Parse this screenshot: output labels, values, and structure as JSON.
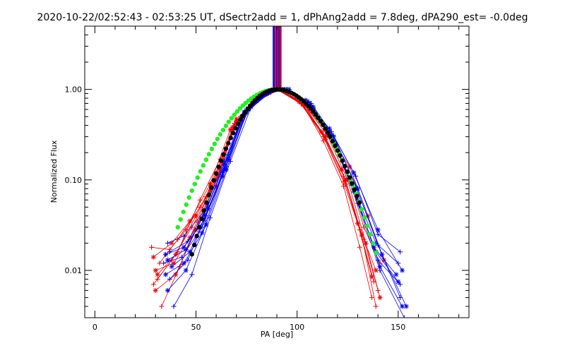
{
  "chart_data": {
    "type": "line",
    "title": "2020-10-22/02:52:43 - 02:53:25 UT, dSectr2add = 1, dPhAng2add = 7.8deg, dPA290_est= -0.0deg",
    "xlabel": "PA [deg]",
    "ylabel": "Normalized Flux",
    "xlim": [
      -5,
      185
    ],
    "ylim": [
      0.003,
      5
    ],
    "y_scale": "log",
    "grid": false,
    "x_ticks": [
      {
        "value": 0,
        "label": "0"
      },
      {
        "value": 50,
        "label": "50"
      },
      {
        "value": 100,
        "label": "100"
      },
      {
        "value": 150,
        "label": "150"
      }
    ],
    "x_minor_step": 10,
    "y_ticks": [
      {
        "value": 0.01,
        "label": "0.01"
      },
      {
        "value": 0.1,
        "label": "0.10"
      },
      {
        "value": 1,
        "label": "1.00"
      }
    ],
    "colors": {
      "red": "#ee0000",
      "blue": "#0000ee",
      "green": "#22ee22",
      "black": "#000000"
    },
    "vertical_markers": [
      {
        "color": "blue",
        "x": [
          88.2,
          88.7,
          89.3,
          89.9,
          90.8,
          91.6
        ],
        "y_range": [
          0.95,
          5
        ]
      },
      {
        "color": "red",
        "x": [
          89.0,
          90.3,
          91.2,
          92.1
        ],
        "y_range": [
          0.95,
          5
        ]
      }
    ],
    "model_curves": [
      {
        "color": "green",
        "marker": "dots",
        "center": 90,
        "sigma_left": 18.5,
        "sigma_right": 17.0,
        "x_range": [
          41,
          140
        ],
        "step": 1.4
      },
      {
        "color": "black",
        "marker": "dots",
        "center": 90,
        "sigma_left": 14.5,
        "sigma_right": 17.0,
        "x_range": [
          48,
          132
        ],
        "step": 1.2
      }
    ],
    "series": [
      {
        "color": "red",
        "marker": "plus",
        "points": [
          [
            28,
            0.018
          ],
          [
            37,
            0.017
          ],
          [
            45,
            0.028
          ],
          [
            55,
            0.065
          ],
          [
            68,
            0.34
          ],
          [
            79,
            0.72
          ],
          [
            91,
            1.0
          ],
          [
            103,
            0.72
          ],
          [
            115,
            0.33
          ],
          [
            125,
            0.12
          ],
          [
            133,
            0.03
          ],
          [
            141,
            0.012
          ]
        ]
      },
      {
        "color": "red",
        "marker": "star",
        "points": [
          [
            30,
            0.01
          ],
          [
            39,
            0.012
          ],
          [
            47,
            0.023
          ],
          [
            57,
            0.075
          ],
          [
            68,
            0.38
          ],
          [
            79,
            0.75
          ],
          [
            91,
            1.0
          ],
          [
            103,
            0.68
          ],
          [
            114,
            0.3
          ],
          [
            124,
            0.1
          ],
          [
            132,
            0.025
          ],
          [
            139,
            0.01
          ]
        ]
      },
      {
        "color": "red",
        "marker": "plus",
        "points": [
          [
            29,
            0.007
          ],
          [
            38,
            0.013
          ],
          [
            48,
            0.03
          ],
          [
            58,
            0.08
          ],
          [
            69,
            0.42
          ],
          [
            80,
            0.78
          ],
          [
            90,
            1.0
          ],
          [
            102,
            0.7
          ],
          [
            113,
            0.32
          ],
          [
            123,
            0.11
          ],
          [
            131,
            0.028
          ],
          [
            138,
            0.0075
          ]
        ]
      },
      {
        "color": "red",
        "marker": "star",
        "points": [
          [
            31,
            0.009
          ],
          [
            40,
            0.015
          ],
          [
            50,
            0.04
          ],
          [
            60,
            0.1
          ],
          [
            70,
            0.47
          ],
          [
            81,
            0.8
          ],
          [
            90,
            1.0
          ],
          [
            101,
            0.73
          ],
          [
            112,
            0.34
          ],
          [
            122,
            0.13
          ],
          [
            130,
            0.033
          ],
          [
            137,
            0.0085
          ]
        ]
      },
      {
        "color": "red",
        "marker": "plus",
        "points": [
          [
            32,
            0.012
          ],
          [
            41,
            0.022
          ],
          [
            52,
            0.05
          ],
          [
            62,
            0.13
          ],
          [
            70,
            0.44
          ],
          [
            81,
            0.78
          ],
          [
            92,
            1.0
          ],
          [
            104,
            0.66
          ],
          [
            114,
            0.28
          ],
          [
            124,
            0.09
          ],
          [
            133,
            0.022
          ],
          [
            140,
            0.006
          ]
        ]
      },
      {
        "color": "red",
        "marker": "star",
        "points": [
          [
            30,
            0.006
          ],
          [
            40,
            0.009
          ],
          [
            50,
            0.028
          ],
          [
            60,
            0.085
          ],
          [
            69,
            0.4
          ],
          [
            80,
            0.74
          ],
          [
            91,
            1.0
          ],
          [
            103,
            0.71
          ],
          [
            115,
            0.31
          ],
          [
            125,
            0.1
          ],
          [
            134,
            0.02
          ],
          [
            141,
            0.005
          ]
        ]
      },
      {
        "color": "red",
        "marker": "plus",
        "points": [
          [
            33,
            0.004
          ],
          [
            42,
            0.011
          ],
          [
            51,
            0.034
          ],
          [
            61,
            0.11
          ],
          [
            70,
            0.45
          ],
          [
            80,
            0.77
          ],
          [
            90,
            1.0
          ],
          [
            102,
            0.69
          ],
          [
            113,
            0.3
          ],
          [
            123,
            0.095
          ],
          [
            132,
            0.024
          ],
          [
            139,
            0.004
          ]
        ]
      },
      {
        "color": "red",
        "marker": "star",
        "points": [
          [
            29,
            0.014
          ],
          [
            38,
            0.02
          ],
          [
            47,
            0.035
          ],
          [
            57,
            0.09
          ],
          [
            67,
            0.36
          ],
          [
            78,
            0.7
          ],
          [
            90,
            1.0
          ],
          [
            102,
            0.74
          ],
          [
            114,
            0.36
          ],
          [
            126,
            0.14
          ],
          [
            135,
            0.04
          ],
          [
            143,
            0.013
          ]
        ]
      },
      {
        "color": "red",
        "marker": "plus",
        "points": [
          [
            31,
            0.008
          ],
          [
            41,
            0.016
          ],
          [
            52,
            0.06
          ],
          [
            62,
            0.17
          ],
          [
            72,
            0.5
          ],
          [
            82,
            0.82
          ],
          [
            92,
            1.0
          ],
          [
            103,
            0.67
          ],
          [
            113,
            0.27
          ],
          [
            123,
            0.085
          ],
          [
            131,
            0.018
          ],
          [
            137,
            0.005
          ]
        ]
      },
      {
        "color": "blue",
        "marker": "plus",
        "points": [
          [
            36,
            0.02
          ],
          [
            44,
            0.024
          ],
          [
            54,
            0.045
          ],
          [
            64,
            0.16
          ],
          [
            74,
            0.58
          ],
          [
            84,
            0.9
          ],
          [
            94,
            1.0
          ],
          [
            106,
            0.7
          ],
          [
            117,
            0.3
          ],
          [
            128,
            0.08
          ],
          [
            139,
            0.02
          ],
          [
            150,
            0.012
          ]
        ]
      },
      {
        "color": "blue",
        "marker": "star",
        "points": [
          [
            35,
            0.015
          ],
          [
            44,
            0.018
          ],
          [
            54,
            0.036
          ],
          [
            64,
            0.13
          ],
          [
            74,
            0.54
          ],
          [
            84,
            0.88
          ],
          [
            93,
            1.0
          ],
          [
            105,
            0.74
          ],
          [
            116,
            0.32
          ],
          [
            127,
            0.09
          ],
          [
            138,
            0.018
          ],
          [
            149,
            0.009
          ]
        ]
      },
      {
        "color": "blue",
        "marker": "plus",
        "points": [
          [
            37,
            0.008
          ],
          [
            46,
            0.013
          ],
          [
            55,
            0.04
          ],
          [
            65,
            0.14
          ],
          [
            75,
            0.57
          ],
          [
            85,
            0.9
          ],
          [
            95,
            1.0
          ],
          [
            107,
            0.66
          ],
          [
            118,
            0.27
          ],
          [
            129,
            0.07
          ],
          [
            140,
            0.013
          ],
          [
            151,
            0.007
          ]
        ]
      },
      {
        "color": "blue",
        "marker": "star",
        "points": [
          [
            38,
            0.011
          ],
          [
            47,
            0.016
          ],
          [
            56,
            0.048
          ],
          [
            66,
            0.17
          ],
          [
            76,
            0.6
          ],
          [
            86,
            0.92
          ],
          [
            96,
            1.0
          ],
          [
            108,
            0.64
          ],
          [
            119,
            0.25
          ],
          [
            130,
            0.06
          ],
          [
            141,
            0.011
          ],
          [
            152,
            0.004
          ]
        ]
      },
      {
        "color": "blue",
        "marker": "plus",
        "points": [
          [
            34,
            0.012
          ],
          [
            43,
            0.014
          ],
          [
            53,
            0.03
          ],
          [
            63,
            0.12
          ],
          [
            73,
            0.52
          ],
          [
            83,
            0.86
          ],
          [
            93,
            1.0
          ],
          [
            105,
            0.72
          ],
          [
            117,
            0.34
          ],
          [
            129,
            0.11
          ],
          [
            140,
            0.025
          ],
          [
            151,
            0.016
          ]
        ]
      },
      {
        "color": "blue",
        "marker": "star",
        "points": [
          [
            36,
            0.006
          ],
          [
            45,
            0.01
          ],
          [
            55,
            0.032
          ],
          [
            65,
            0.13
          ],
          [
            75,
            0.55
          ],
          [
            85,
            0.89
          ],
          [
            94,
            1.0
          ],
          [
            106,
            0.68
          ],
          [
            117,
            0.29
          ],
          [
            128,
            0.075
          ],
          [
            139,
            0.016
          ],
          [
            150,
            0.0075
          ]
        ]
      },
      {
        "color": "blue",
        "marker": "plus",
        "points": [
          [
            39,
            0.004
          ],
          [
            48,
            0.009
          ],
          [
            57,
            0.038
          ],
          [
            67,
            0.16
          ],
          [
            77,
            0.62
          ],
          [
            87,
            0.93
          ],
          [
            95,
            1.0
          ],
          [
            107,
            0.7
          ],
          [
            118,
            0.31
          ],
          [
            129,
            0.085
          ],
          [
            140,
            0.019
          ],
          [
            151,
            0.005
          ]
        ]
      },
      {
        "color": "blue",
        "marker": "star",
        "points": [
          [
            35,
            0.009
          ],
          [
            44,
            0.012
          ],
          [
            53,
            0.026
          ],
          [
            63,
            0.11
          ],
          [
            73,
            0.5
          ],
          [
            83,
            0.85
          ],
          [
            92,
            1.0
          ],
          [
            104,
            0.76
          ],
          [
            116,
            0.37
          ],
          [
            128,
            0.12
          ],
          [
            140,
            0.028
          ],
          [
            152,
            0.01
          ]
        ]
      },
      {
        "color": "blue",
        "marker": "plus",
        "points": [
          [
            37,
            0.016
          ],
          [
            46,
            0.021
          ],
          [
            56,
            0.052
          ],
          [
            66,
            0.19
          ],
          [
            76,
            0.64
          ],
          [
            86,
            0.94
          ],
          [
            96,
            1.0
          ],
          [
            108,
            0.62
          ],
          [
            119,
            0.24
          ],
          [
            130,
            0.055
          ],
          [
            141,
            0.01
          ],
          [
            153,
            0.003
          ]
        ]
      },
      {
        "color": "blue",
        "marker": "star",
        "points": [
          [
            36,
            0.013
          ],
          [
            45,
            0.017
          ],
          [
            54,
            0.041
          ],
          [
            64,
            0.15
          ],
          [
            74,
            0.56
          ],
          [
            84,
            0.89
          ],
          [
            94,
            1.0
          ],
          [
            106,
            0.71
          ],
          [
            118,
            0.3
          ],
          [
            130,
            0.08
          ],
          [
            142,
            0.015
          ],
          [
            154,
            0.004
          ]
        ]
      }
    ]
  }
}
